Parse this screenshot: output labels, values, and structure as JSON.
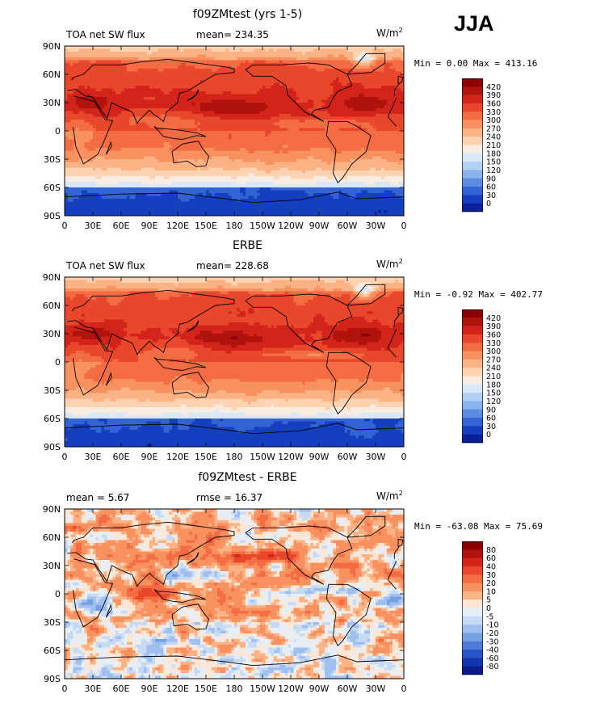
{
  "season": "JJA",
  "panels": [
    {
      "title": "f09ZMtest (yrs 1-5)",
      "left_label": "TOA net SW flux",
      "center_label": "mean=  234.35",
      "units": "W/m",
      "units_sup": "2",
      "minmax": "Min =   0.00 Max = 413.16",
      "colorbar_labels": [
        "420",
        "390",
        "360",
        "330",
        "300",
        "270",
        "240",
        "210",
        "180",
        "150",
        "120",
        "90",
        "60",
        "30",
        "0"
      ],
      "colorbar_colors": [
        "#8b0000",
        "#b0120c",
        "#d2241a",
        "#e8472b",
        "#f36c43",
        "#f8915f",
        "#fbb284",
        "#fdd3b2",
        "#f7ecdf",
        "#d8e8f8",
        "#b2d0f4",
        "#8ab2ec",
        "#5c8ce0",
        "#3463d4",
        "#1440c0",
        "#0a1f96"
      ],
      "field": "A"
    },
    {
      "title": "ERBE",
      "left_label": "TOA net SW flux",
      "center_label": "mean=  228.68",
      "units": "W/m",
      "units_sup": "2",
      "minmax": "Min =  -0.92 Max = 402.77",
      "colorbar_labels": [
        "420",
        "390",
        "360",
        "330",
        "300",
        "270",
        "240",
        "210",
        "180",
        "150",
        "120",
        "90",
        "60",
        "30",
        "0"
      ],
      "colorbar_colors": [
        "#8b0000",
        "#b0120c",
        "#d2241a",
        "#e8472b",
        "#f36c43",
        "#f8915f",
        "#fbb284",
        "#fdd3b2",
        "#f7ecdf",
        "#d8e8f8",
        "#b2d0f4",
        "#8ab2ec",
        "#5c8ce0",
        "#3463d4",
        "#1440c0",
        "#0a1f96"
      ],
      "field": "B"
    },
    {
      "title": "f09ZMtest - ERBE",
      "left_label": "mean =   5.67",
      "center_label": "rmse =  16.37",
      "units": "W/m",
      "units_sup": "2",
      "minmax": "Min = -63.08 Max =  75.69",
      "colorbar_labels": [
        "80",
        "60",
        "40",
        "30",
        "20",
        "10",
        "5",
        "0",
        "-5",
        "-10",
        "-20",
        "-30",
        "-40",
        "-60",
        "-80"
      ],
      "colorbar_colors": [
        "#8b0000",
        "#b0120c",
        "#d2241a",
        "#e8472b",
        "#f36c43",
        "#f8915f",
        "#fbb284",
        "#fde6d4",
        "#e6eef8",
        "#c6daf4",
        "#9fc0ee",
        "#769fe4",
        "#4d7bd8",
        "#2856c8",
        "#1234b0",
        "#0a1a88"
      ],
      "field": "D"
    }
  ],
  "lat_labels": [
    "90N",
    "60N",
    "30N",
    "0",
    "30S",
    "60S",
    "90S"
  ],
  "lon_labels": [
    "0",
    "30E",
    "60E",
    "90E",
    "120E",
    "150E",
    "180",
    "150W",
    "120W",
    "90W",
    "60W",
    "30W",
    "0"
  ]
}
